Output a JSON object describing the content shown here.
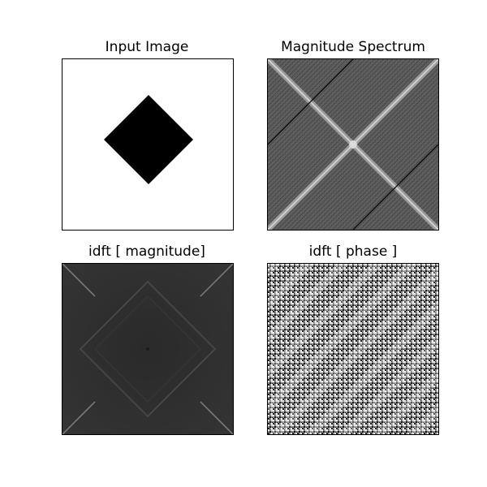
{
  "figure": {
    "background": "#ffffff"
  },
  "chart_data": [
    {
      "type": "image",
      "title": "Input Image",
      "content": "white field with a black diamond (rotated square) centered",
      "colors": {
        "background": "#ffffff",
        "shape": "#000000"
      },
      "axes_visible": false
    },
    {
      "type": "image",
      "title": "Magnitude Spectrum",
      "content": "grayscale log-magnitude spectrum with bright diagonal cross through center and fine diagonal texture",
      "colors": {
        "base": "#5a5a5a",
        "bright": "#d8d8d8",
        "dark_line": "#000000"
      },
      "axes_visible": false
    },
    {
      "type": "image",
      "title": "idft [ magnitude]",
      "content": "dark gray image with faint diamond outline and bright corner streaks",
      "colors": {
        "base": "#2b2b2b",
        "outline": "#4a4a4a",
        "streak": "#a0a0a0"
      },
      "axes_visible": false
    },
    {
      "type": "image",
      "title": "idft [ phase ]",
      "content": "high-frequency black and white noise organized in diagonal bands",
      "colors": {
        "light": "#e6e6e6",
        "dark": "#1a1a1a"
      },
      "axes_visible": false
    }
  ]
}
